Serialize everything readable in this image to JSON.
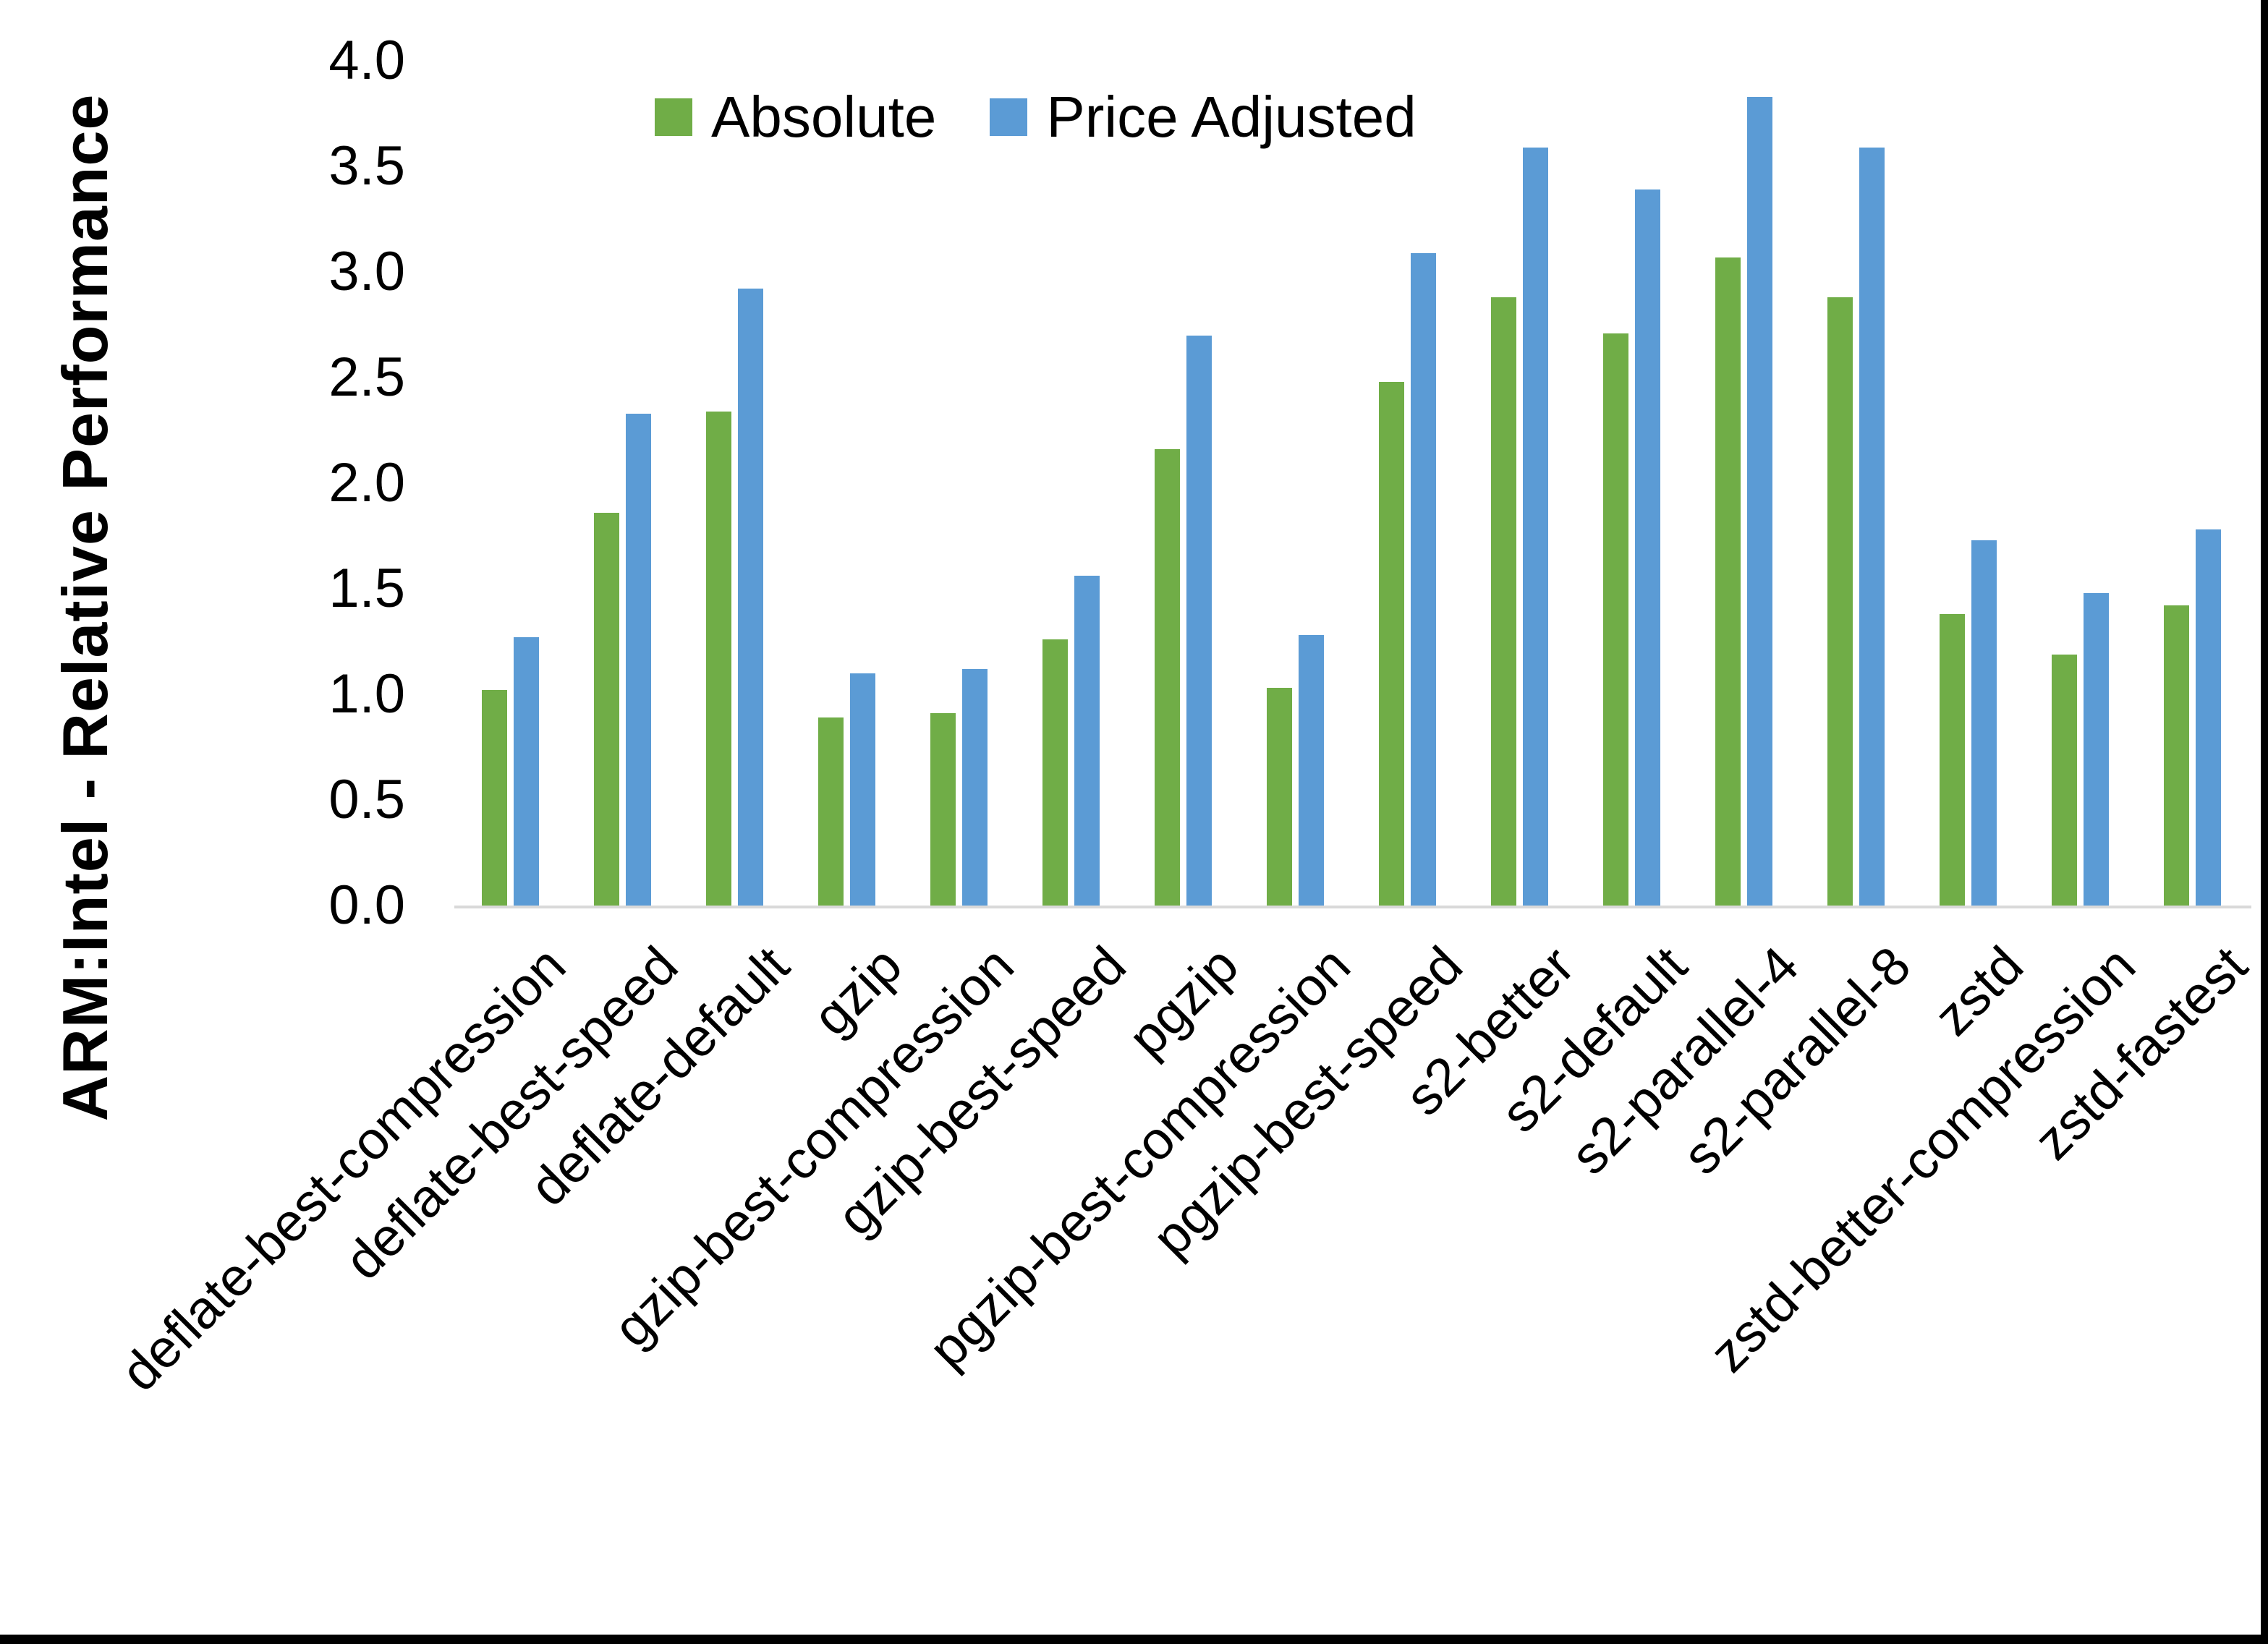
{
  "chart_data": {
    "type": "bar",
    "title": "",
    "ylabel": "ARM:Intel - Relative Performance",
    "xlabel": "",
    "ylim": [
      0,
      4
    ],
    "ytick_step": 0.5,
    "yticks": [
      "0.0",
      "0.5",
      "1.0",
      "1.5",
      "2.0",
      "2.5",
      "3.0",
      "3.5",
      "4.0"
    ],
    "grid": false,
    "legend_position": "top-center",
    "axis_line_color": "#D9D9D9",
    "text_color": "#000000",
    "background_color": "#ffffff",
    "frame_border_color": "#000000",
    "categories": [
      "deflate-best-compression",
      "deflate-best-speed",
      "deflate-default",
      "gzip",
      "gzip-best-compression",
      "gzip-best-speed",
      "pgzip",
      "pgzip-best-compression",
      "pgzip-best-speed",
      "s2-better",
      "s2-default",
      "s2-parallel-4",
      "s2-parallel-8",
      "zstd",
      "zstd-better-compression",
      "zstd-fastest"
    ],
    "series": [
      {
        "name": "Absolute",
        "color": "#70AD47",
        "values": [
          1.02,
          1.86,
          2.34,
          0.89,
          0.91,
          1.26,
          2.16,
          1.03,
          2.48,
          2.88,
          2.71,
          3.07,
          2.88,
          1.38,
          1.19,
          1.42
        ]
      },
      {
        "name": "Price Adjusted",
        "color": "#5B9BD5",
        "values": [
          1.27,
          2.33,
          2.92,
          1.1,
          1.12,
          1.56,
          2.7,
          1.28,
          3.09,
          3.59,
          3.39,
          3.83,
          3.59,
          1.73,
          1.48,
          1.78
        ]
      }
    ]
  }
}
